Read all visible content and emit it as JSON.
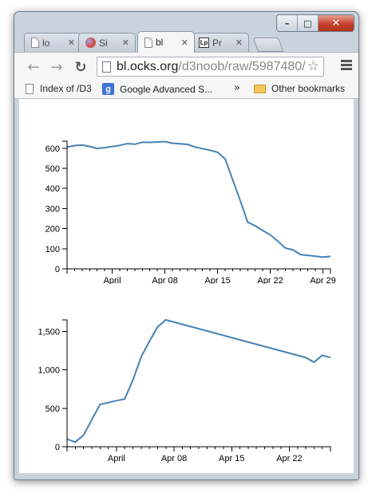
{
  "tabs": [
    {
      "title": "lo",
      "icon": "document-icon"
    },
    {
      "title": "Si",
      "icon": "sphere-icon"
    },
    {
      "title": "bl",
      "icon": "document-icon",
      "active": true
    },
    {
      "title": "Pr",
      "icon": "lp-icon"
    }
  ],
  "address_bar": {
    "host": "bl.ocks.org",
    "path": "/d3noob/raw/5987480/"
  },
  "bookmarks": {
    "items": [
      {
        "label": "Index of /D3",
        "icon": "document-icon"
      },
      {
        "label": "Google Advanced S...",
        "icon": "google-icon"
      }
    ],
    "overflow": "»",
    "other": "Other bookmarks"
  },
  "chart_data": [
    {
      "type": "line",
      "title": "",
      "xlabel": "",
      "ylabel": "",
      "x_tick_labels": [
        "April",
        "Apr 08",
        "Apr 15",
        "Apr 22",
        "Apr 29"
      ],
      "x_tick_dates": [
        "2013-04-01",
        "2013-04-08",
        "2013-04-15",
        "2013-04-22",
        "2013-04-29"
      ],
      "y_ticks": [
        "0",
        "100",
        "200",
        "300",
        "400",
        "500",
        "600"
      ],
      "y_tick_values": [
        0,
        100,
        200,
        300,
        400,
        500,
        600
      ],
      "ylim": [
        0,
        635
      ],
      "xlim": [
        "2013-03-26",
        "2013-04-30"
      ],
      "color": "#4682b4",
      "series": [
        {
          "x": [
            "2013-03-26",
            "2013-03-27",
            "2013-03-28",
            "2013-03-29",
            "2013-03-30",
            "2013-03-31",
            "2013-04-01",
            "2013-04-02",
            "2013-04-03",
            "2013-04-04",
            "2013-04-05",
            "2013-04-06",
            "2013-04-07",
            "2013-04-08",
            "2013-04-09",
            "2013-04-10",
            "2013-04-11",
            "2013-04-12",
            "2013-04-13",
            "2013-04-14",
            "2013-04-15",
            "2013-04-16",
            "2013-04-17",
            "2013-04-18",
            "2013-04-19",
            "2013-04-20",
            "2013-04-21",
            "2013-04-22",
            "2013-04-23",
            "2013-04-24",
            "2013-04-25",
            "2013-04-26",
            "2013-04-27",
            "2013-04-28",
            "2013-04-29",
            "2013-04-30"
          ],
          "y": [
            606,
            613,
            616,
            609,
            599,
            603,
            609,
            614,
            623,
            620,
            630,
            629,
            631,
            633,
            625,
            622,
            619,
            606,
            598,
            590,
            580,
            547,
            444,
            340,
            232,
            214,
            191,
            169,
            138,
            103,
            95,
            71,
            67,
            63,
            58,
            62
          ]
        }
      ]
    },
    {
      "type": "line",
      "title": "",
      "xlabel": "",
      "ylabel": "",
      "x_tick_labels": [
        "April",
        "Apr 08",
        "Apr 15",
        "Apr 22"
      ],
      "x_tick_dates": [
        "2013-04-01",
        "2013-04-08",
        "2013-04-15",
        "2013-04-22"
      ],
      "y_ticks": [
        "0",
        "500",
        "1,000",
        "1,500"
      ],
      "y_tick_values": [
        0,
        500,
        1000,
        1500
      ],
      "ylim": [
        0,
        1650
      ],
      "xlim": [
        "2013-03-26",
        "2013-04-27"
      ],
      "color": "#4682b4",
      "series": [
        {
          "x": [
            "2013-03-26",
            "2013-03-27",
            "2013-03-28",
            "2013-03-30",
            "2013-04-01",
            "2013-04-02",
            "2013-04-03",
            "2013-04-04",
            "2013-04-05",
            "2013-04-06",
            "2013-04-07",
            "2013-04-24",
            "2013-04-25",
            "2013-04-26",
            "2013-04-27"
          ],
          "y": [
            100,
            60,
            150,
            550,
            600,
            620,
            870,
            1170,
            1370,
            1560,
            1650,
            1160,
            1100,
            1190,
            1160
          ]
        }
      ]
    }
  ]
}
